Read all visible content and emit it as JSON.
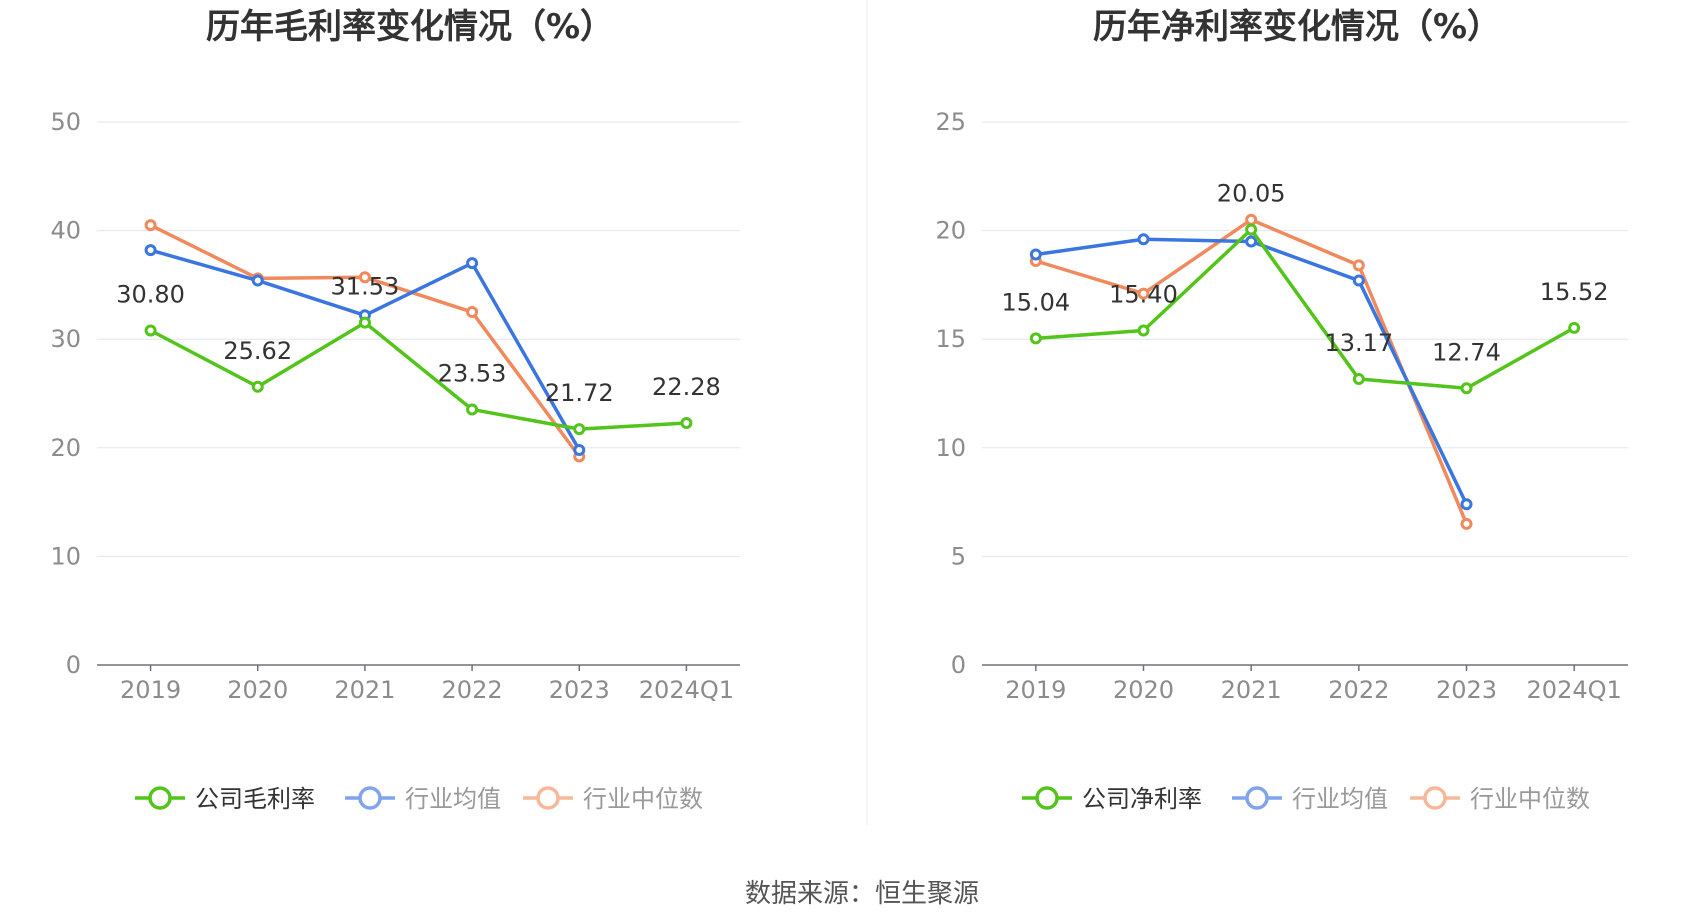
{
  "source_text": "数据来源：恒生聚源",
  "chart_data": [
    {
      "type": "line",
      "title": "历年毛利率变化情况（%）",
      "categories": [
        "2019",
        "2020",
        "2021",
        "2022",
        "2023",
        "2024Q1"
      ],
      "ylim": [
        0,
        50
      ],
      "yticks": [
        "0",
        "10",
        "20",
        "30",
        "40",
        "50"
      ],
      "grid": true,
      "legend_position": "bottom",
      "series": [
        {
          "name": "公司毛利率",
          "color": "#52c41a",
          "values": [
            30.8,
            25.62,
            31.53,
            23.53,
            21.72,
            22.28
          ],
          "labels": [
            "30.80",
            "25.62",
            "31.53",
            "23.53",
            "21.72",
            "22.28"
          ]
        },
        {
          "name": "行业均值",
          "color": "#3a75e0",
          "legend_color": "#7fa3ec",
          "values": [
            38.2,
            35.4,
            32.2,
            37.0,
            19.8,
            null
          ]
        },
        {
          "name": "行业中位数",
          "color": "#f08a5d",
          "legend_color": "#f6b89a",
          "values": [
            40.5,
            35.6,
            35.7,
            32.5,
            19.2,
            null
          ]
        }
      ]
    },
    {
      "type": "line",
      "title": "历年净利率变化情况（%）",
      "categories": [
        "2019",
        "2020",
        "2021",
        "2022",
        "2023",
        "2024Q1"
      ],
      "ylim": [
        0,
        25
      ],
      "yticks": [
        "0",
        "5",
        "10",
        "15",
        "20",
        "25"
      ],
      "grid": true,
      "legend_position": "bottom",
      "series": [
        {
          "name": "公司净利率",
          "color": "#52c41a",
          "values": [
            15.04,
            15.4,
            20.05,
            13.17,
            12.74,
            15.52
          ],
          "labels": [
            "15.04",
            "15.40",
            "20.05",
            "13.17",
            "12.74",
            "15.52"
          ]
        },
        {
          "name": "行业均值",
          "color": "#3a75e0",
          "legend_color": "#7fa3ec",
          "values": [
            18.9,
            19.6,
            19.5,
            17.7,
            7.4,
            null
          ]
        },
        {
          "name": "行业中位数",
          "color": "#f08a5d",
          "legend_color": "#f6b89a",
          "values": [
            18.6,
            17.1,
            20.5,
            18.4,
            6.5,
            null
          ]
        }
      ]
    }
  ]
}
